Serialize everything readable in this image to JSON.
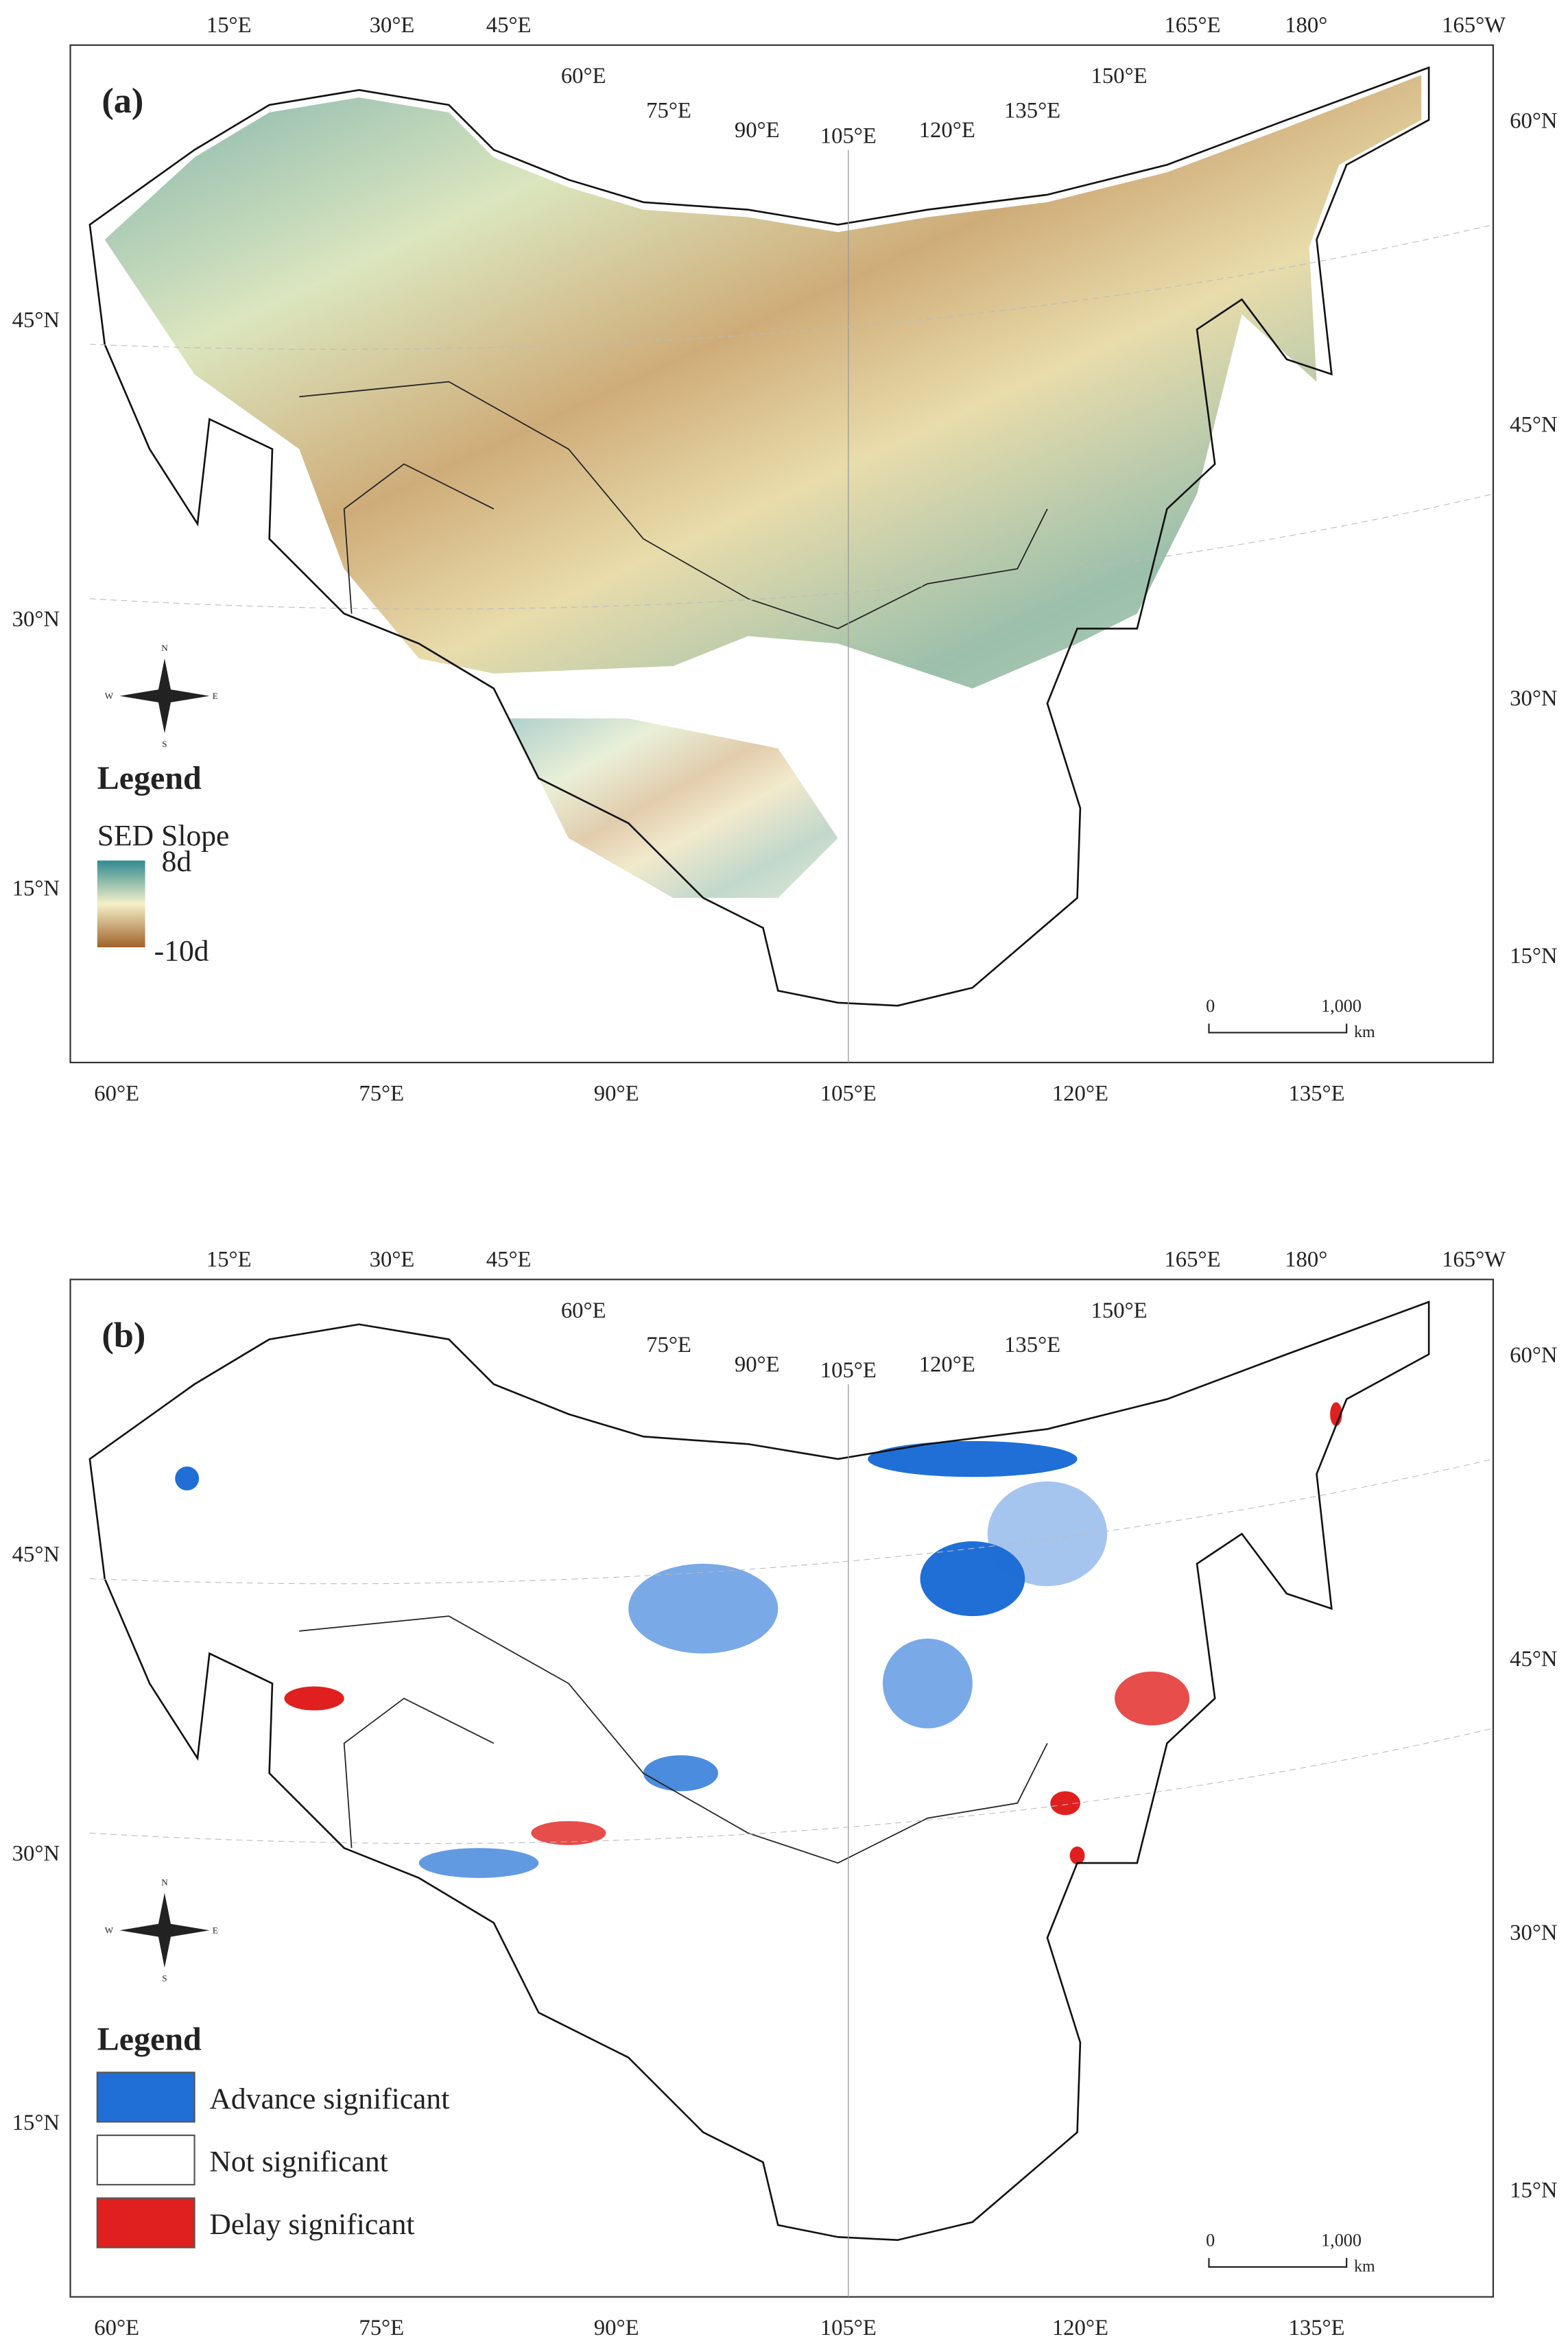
{
  "panels": [
    {
      "label": "(a)",
      "legend": {
        "title": "Legend",
        "subtitle": "SED Slope",
        "max": "8d",
        "min": "-10d"
      }
    },
    {
      "label": "(b)",
      "legend": {
        "title": "Legend",
        "items": [
          "Advance significant",
          "Not significant",
          "Delay significant"
        ]
      }
    }
  ],
  "graticule": {
    "top": [
      "15°E",
      "30°E",
      "45°E",
      "60°E",
      "75°E",
      "90°E",
      "105°E",
      "120°E",
      "135°E",
      "150°E",
      "165°E",
      "180°",
      "165°W"
    ],
    "bottom": [
      "60°E",
      "75°E",
      "90°E",
      "105°E",
      "120°E",
      "135°E"
    ],
    "left": [
      "45°N",
      "30°N",
      "15°N"
    ],
    "right": [
      "60°N",
      "45°N",
      "30°N",
      "15°N"
    ]
  },
  "scale_bar": {
    "start": "0",
    "end": "1,000",
    "unit": "km"
  },
  "compass": {
    "n": "N",
    "s": "S",
    "e": "E",
    "w": "W"
  }
}
